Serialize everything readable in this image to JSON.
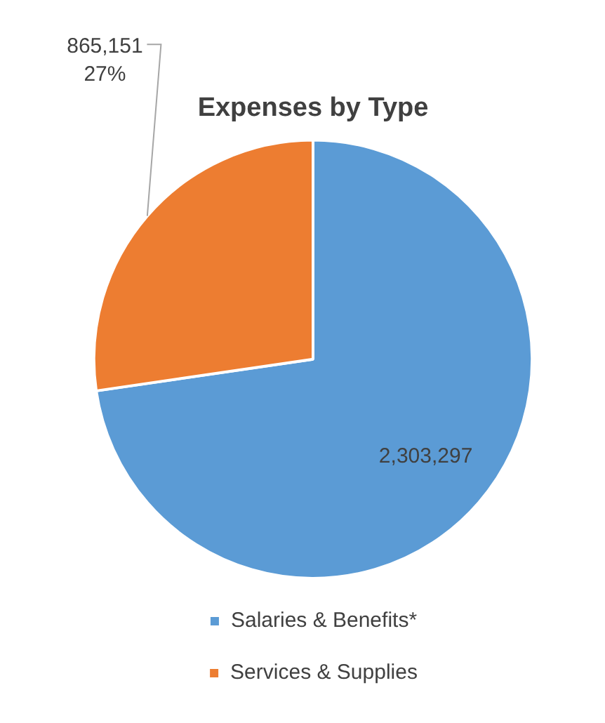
{
  "chart_data": {
    "type": "pie",
    "title": "Expenses by Type",
    "categories": [
      "Salaries & Benefits*",
      "Services & Supplies"
    ],
    "values": [
      2303297,
      865151
    ],
    "colors": [
      "#5b9bd5",
      "#ed7d31"
    ],
    "value_labels": [
      "2,303,297",
      "865,151\n27%"
    ],
    "legend": "bottom"
  }
}
